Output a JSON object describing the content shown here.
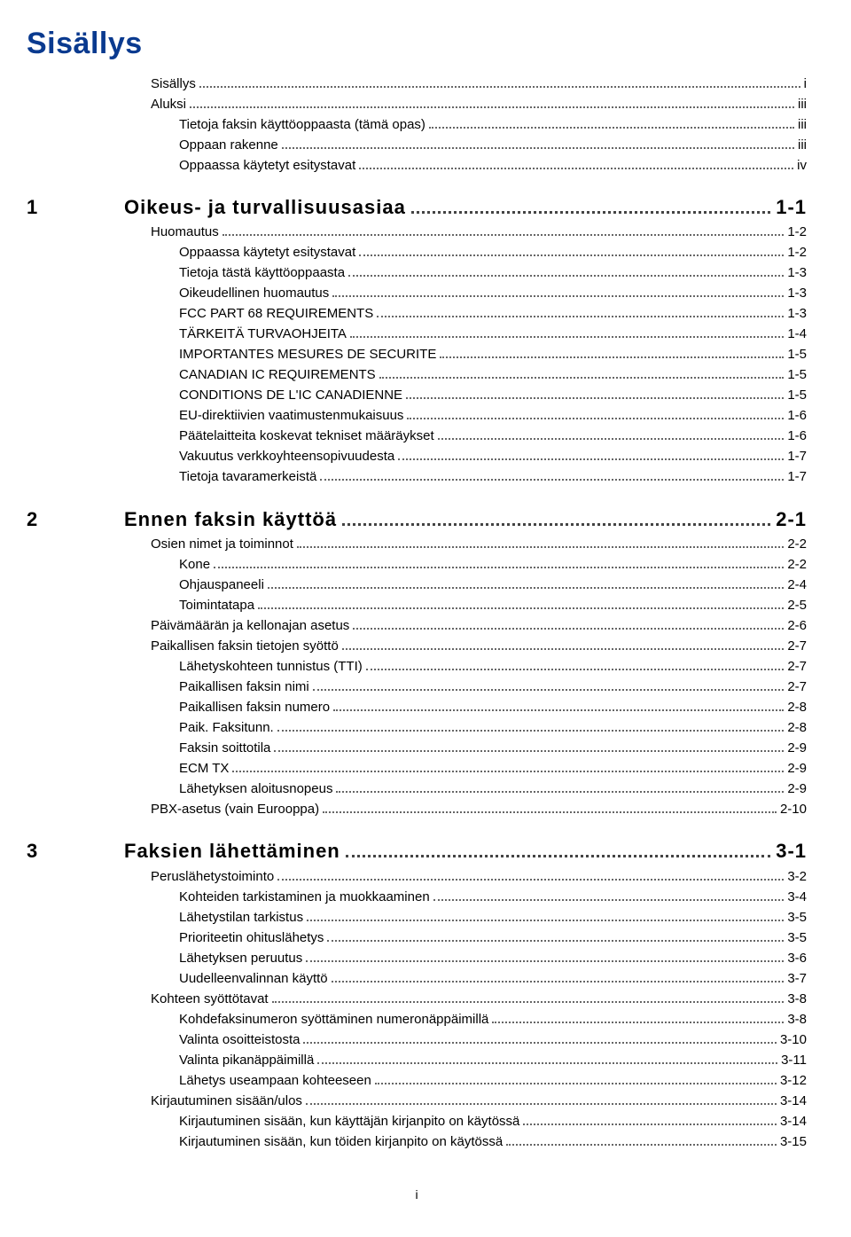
{
  "title": {
    "text": "Sisällys",
    "color": "#0a3a8f"
  },
  "page_number": "i",
  "front_matter": [
    {
      "label": "Sisällys",
      "page": "i",
      "indent": 0
    },
    {
      "label": "Aluksi",
      "page": "iii",
      "indent": 0
    },
    {
      "label": "Tietoja faksin käyttöoppaasta (tämä opas)",
      "page": "iii",
      "indent": 1
    },
    {
      "label": "Oppaan rakenne",
      "page": "iii",
      "indent": 1
    },
    {
      "label": "Oppaassa käytetyt esitystavat",
      "page": "iv",
      "indent": 1
    }
  ],
  "sections": [
    {
      "num": "1",
      "label": "Oikeus- ja turvallisuusasiaa",
      "page": "1-1",
      "items": [
        {
          "label": "Huomautus",
          "page": "1-2",
          "indent": 1
        },
        {
          "label": "Oppaassa käytetyt esitystavat",
          "page": "1-2",
          "indent": 2
        },
        {
          "label": "Tietoja tästä käyttöoppaasta",
          "page": "1-3",
          "indent": 2
        },
        {
          "label": "Oikeudellinen huomautus",
          "page": "1-3",
          "indent": 2
        },
        {
          "label": "FCC PART 68 REQUIREMENTS",
          "page": "1-3",
          "indent": 2
        },
        {
          "label": "TÄRKEITÄ TURVAOHJEITA",
          "page": "1-4",
          "indent": 2
        },
        {
          "label": "IMPORTANTES MESURES DE SECURITE",
          "page": "1-5",
          "indent": 2
        },
        {
          "label": "CANADIAN IC REQUIREMENTS",
          "page": "1-5",
          "indent": 2
        },
        {
          "label": "CONDITIONS DE L'IC CANADIENNE",
          "page": "1-5",
          "indent": 2
        },
        {
          "label": "EU-direktiivien vaatimustenmukaisuus",
          "page": "1-6",
          "indent": 2
        },
        {
          "label": "Päätelaitteita koskevat tekniset määräykset",
          "page": "1-6",
          "indent": 2
        },
        {
          "label": "Vakuutus verkkoyhteensopivuudesta",
          "page": "1-7",
          "indent": 2
        },
        {
          "label": "Tietoja tavaramerkeistä",
          "page": "1-7",
          "indent": 2
        }
      ]
    },
    {
      "num": "2",
      "label": "Ennen faksin käyttöä",
      "page": "2-1",
      "items": [
        {
          "label": "Osien nimet ja toiminnot",
          "page": "2-2",
          "indent": 1
        },
        {
          "label": "Kone",
          "page": "2-2",
          "indent": 2
        },
        {
          "label": "Ohjauspaneeli",
          "page": "2-4",
          "indent": 2
        },
        {
          "label": "Toimintatapa",
          "page": "2-5",
          "indent": 2
        },
        {
          "label": "Päivämäärän ja kellonajan asetus",
          "page": "2-6",
          "indent": 1
        },
        {
          "label": "Paikallisen faksin tietojen syöttö",
          "page": "2-7",
          "indent": 1
        },
        {
          "label": "Lähetyskohteen tunnistus (TTI)",
          "page": "2-7",
          "indent": 2
        },
        {
          "label": "Paikallisen faksin nimi",
          "page": "2-7",
          "indent": 2
        },
        {
          "label": "Paikallisen faksin numero",
          "page": "2-8",
          "indent": 2
        },
        {
          "label": "Paik. Faksitunn.",
          "page": "2-8",
          "indent": 2
        },
        {
          "label": "Faksin soittotila",
          "page": "2-9",
          "indent": 2
        },
        {
          "label": "ECM TX",
          "page": "2-9",
          "indent": 2
        },
        {
          "label": "Lähetyksen aloitusnopeus",
          "page": "2-9",
          "indent": 2
        },
        {
          "label": "PBX-asetus (vain Eurooppa)",
          "page": "2-10",
          "indent": 1
        }
      ]
    },
    {
      "num": "3",
      "label": "Faksien lähettäminen",
      "page": "3-1",
      "items": [
        {
          "label": "Peruslähetystoiminto",
          "page": "3-2",
          "indent": 1
        },
        {
          "label": "Kohteiden tarkistaminen ja muokkaaminen",
          "page": "3-4",
          "indent": 2
        },
        {
          "label": "Lähetystilan tarkistus",
          "page": "3-5",
          "indent": 2
        },
        {
          "label": "Prioriteetin ohituslähetys",
          "page": "3-5",
          "indent": 2
        },
        {
          "label": "Lähetyksen peruutus",
          "page": "3-6",
          "indent": 2
        },
        {
          "label": "Uudelleenvalinnan käyttö",
          "page": "3-7",
          "indent": 2
        },
        {
          "label": "Kohteen syöttötavat",
          "page": "3-8",
          "indent": 1
        },
        {
          "label": "Kohdefaksinumeron syöttäminen numeronäppäimillä",
          "page": "3-8",
          "indent": 2
        },
        {
          "label": "Valinta osoitteistosta",
          "page": "3-10",
          "indent": 2
        },
        {
          "label": "Valinta pikanäppäimillä",
          "page": "3-11",
          "indent": 2
        },
        {
          "label": "Lähetys useampaan kohteeseen",
          "page": "3-12",
          "indent": 2
        },
        {
          "label": "Kirjautuminen sisään/ulos",
          "page": "3-14",
          "indent": 1
        },
        {
          "label": "Kirjautuminen sisään, kun käyttäjän kirjanpito on käytössä",
          "page": "3-14",
          "indent": 2
        },
        {
          "label": "Kirjautuminen sisään, kun töiden kirjanpito on käytössä",
          "page": "3-15",
          "indent": 2
        }
      ]
    }
  ]
}
